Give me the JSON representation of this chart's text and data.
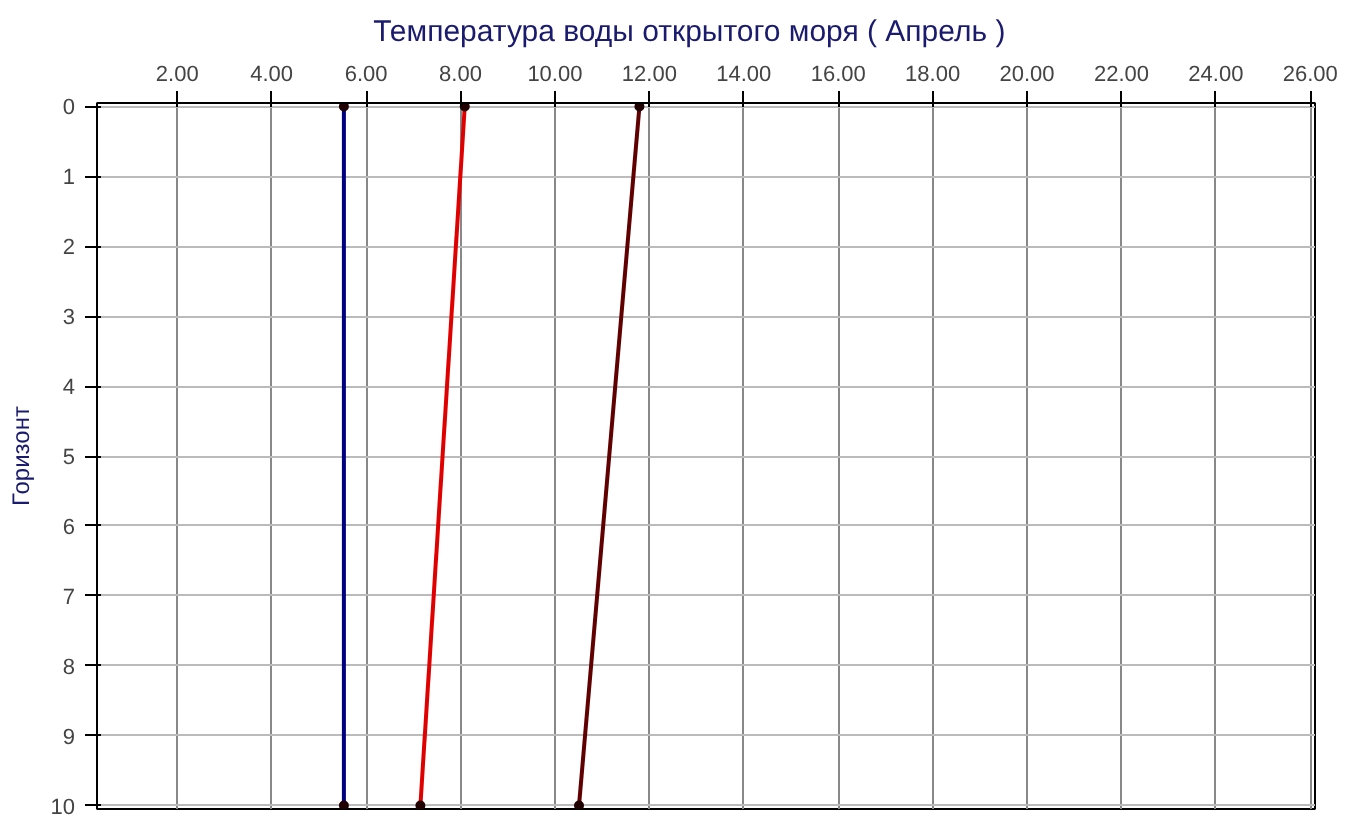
{
  "chart_data": {
    "type": "line",
    "title": "Температура воды открытого моря     ( Апрель )",
    "ylabel": "Горизонт",
    "series": [
      {
        "color": "#000080",
        "x": [
          5.53,
          5.53
        ],
        "values": [
          0,
          10
        ]
      },
      {
        "color": "#e00000",
        "x": [
          8.09,
          7.15
        ],
        "values": [
          0,
          10
        ]
      },
      {
        "color": "#600000",
        "x": [
          11.79,
          10.51
        ],
        "values": [
          0,
          10
        ]
      }
    ],
    "xlim": [
      0.3,
      26.1
    ],
    "xticks": [
      {
        "value": 2,
        "label": "2.00"
      },
      {
        "value": 4,
        "label": "4.00"
      },
      {
        "value": 6,
        "label": "6.00"
      },
      {
        "value": 8,
        "label": "8.00"
      },
      {
        "value": 10,
        "label": "10.00"
      },
      {
        "value": 12,
        "label": "12.00"
      },
      {
        "value": 14,
        "label": "14.00"
      },
      {
        "value": 16,
        "label": "16.00"
      },
      {
        "value": 18,
        "label": "18.00"
      },
      {
        "value": 20,
        "label": "20.00"
      },
      {
        "value": 22,
        "label": "22.00"
      },
      {
        "value": 24,
        "label": "24.00"
      },
      {
        "value": 26,
        "label": "26.00"
      }
    ],
    "ylim": [
      10.05,
      -0.05
    ],
    "yticks": [
      0,
      1,
      2,
      3,
      4,
      5,
      6,
      7,
      8,
      9,
      10
    ],
    "grid": true,
    "marker": "circle",
    "line_style": "solid"
  }
}
